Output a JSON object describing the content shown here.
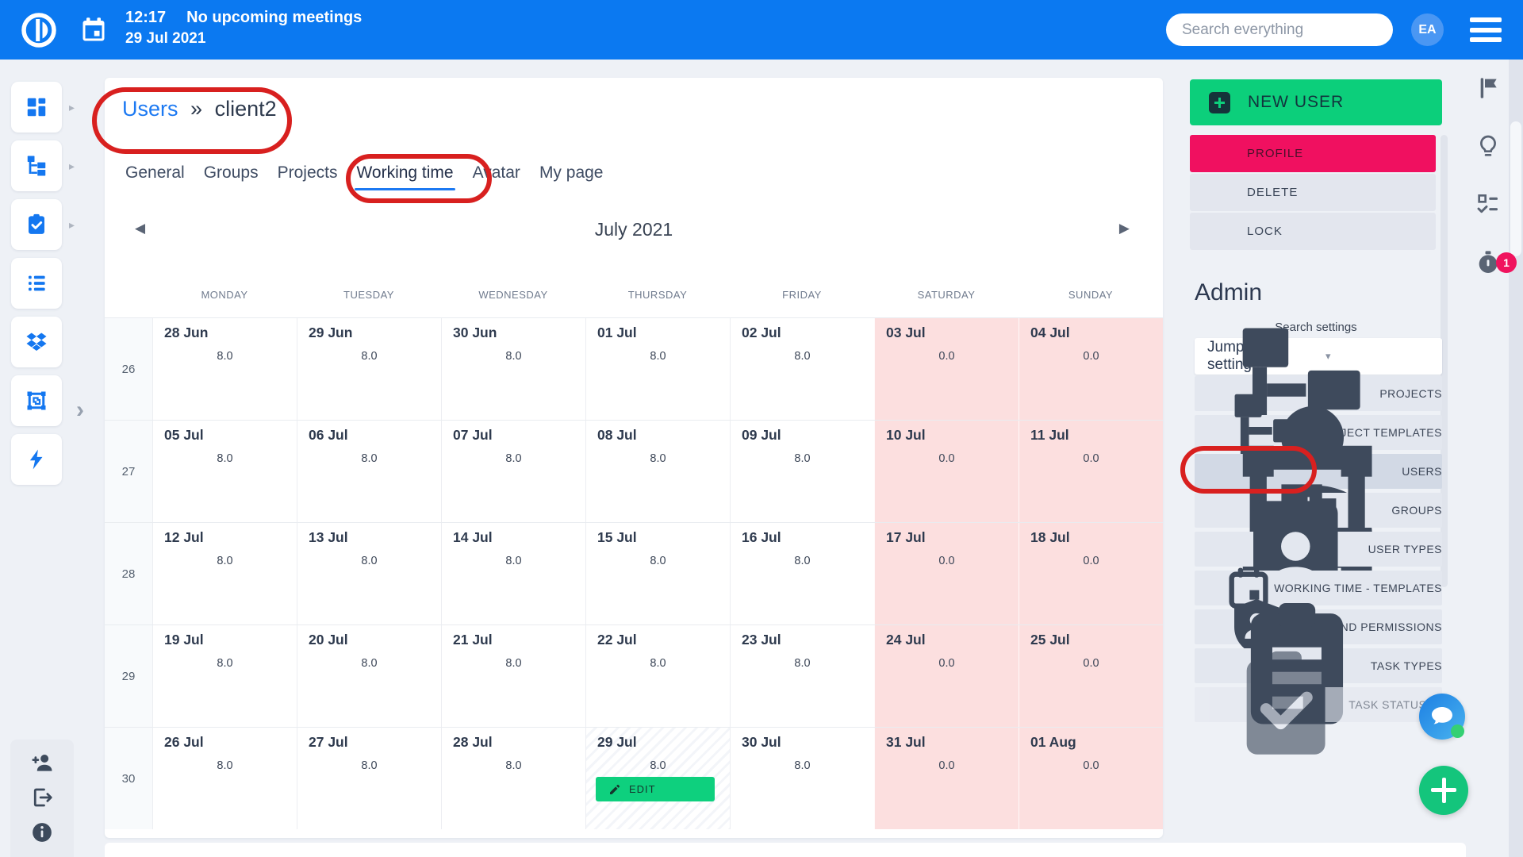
{
  "colors": {
    "topbar_blue": "#0b79f1",
    "accent_blue": "#1c79f2",
    "green": "#0ccf7b",
    "pink": "#f01060",
    "weekend_pink": "#fcdfdf",
    "annotation_red": "#d8201f"
  },
  "topbar": {
    "time": "12:17",
    "meeting_status": "No upcoming meetings",
    "date": "29 Jul 2021",
    "search_placeholder": "Search everything",
    "avatar_initials": "EA"
  },
  "left_rail": {
    "tiles": [
      {
        "icon": "dashboard-icon",
        "has_submenu": true
      },
      {
        "icon": "project-tree-icon",
        "has_submenu": true
      },
      {
        "icon": "tasks-icon",
        "has_submenu": true
      },
      {
        "icon": "list-icon",
        "has_submenu": false
      },
      {
        "icon": "dropbox-icon",
        "has_submenu": false
      },
      {
        "icon": "groups-icon",
        "has_submenu": false
      },
      {
        "icon": "quick-actions-icon",
        "has_submenu": false
      }
    ],
    "bottom_icons": [
      "add-person-icon",
      "logout-icon",
      "info-icon"
    ]
  },
  "breadcrumb": {
    "link": "Users",
    "separator": "»",
    "current": "client2"
  },
  "tabs": {
    "items": [
      "General",
      "Groups",
      "Projects",
      "Working time",
      "Avatar",
      "My page"
    ],
    "active_index": 3
  },
  "calendar": {
    "title": "July 2021",
    "day_headers": [
      "MONDAY",
      "TUESDAY",
      "WEDNESDAY",
      "THURSDAY",
      "FRIDAY",
      "SATURDAY",
      "SUNDAY"
    ],
    "edit_label": "EDIT",
    "weeks": [
      {
        "number": "26",
        "days": [
          {
            "date": "28 Jun",
            "value": "8.0",
            "weekend": false
          },
          {
            "date": "29 Jun",
            "value": "8.0",
            "weekend": false
          },
          {
            "date": "30 Jun",
            "value": "8.0",
            "weekend": false
          },
          {
            "date": "01 Jul",
            "value": "8.0",
            "weekend": false
          },
          {
            "date": "02 Jul",
            "value": "8.0",
            "weekend": false
          },
          {
            "date": "03 Jul",
            "value": "0.0",
            "weekend": true
          },
          {
            "date": "04 Jul",
            "value": "0.0",
            "weekend": true
          }
        ]
      },
      {
        "number": "27",
        "days": [
          {
            "date": "05 Jul",
            "value": "8.0",
            "weekend": false
          },
          {
            "date": "06 Jul",
            "value": "8.0",
            "weekend": false
          },
          {
            "date": "07 Jul",
            "value": "8.0",
            "weekend": false
          },
          {
            "date": "08 Jul",
            "value": "8.0",
            "weekend": false
          },
          {
            "date": "09 Jul",
            "value": "8.0",
            "weekend": false
          },
          {
            "date": "10 Jul",
            "value": "0.0",
            "weekend": true
          },
          {
            "date": "11 Jul",
            "value": "0.0",
            "weekend": true
          }
        ]
      },
      {
        "number": "28",
        "days": [
          {
            "date": "12 Jul",
            "value": "8.0",
            "weekend": false
          },
          {
            "date": "13 Jul",
            "value": "8.0",
            "weekend": false
          },
          {
            "date": "14 Jul",
            "value": "8.0",
            "weekend": false
          },
          {
            "date": "15 Jul",
            "value": "8.0",
            "weekend": false
          },
          {
            "date": "16 Jul",
            "value": "8.0",
            "weekend": false
          },
          {
            "date": "17 Jul",
            "value": "0.0",
            "weekend": true
          },
          {
            "date": "18 Jul",
            "value": "0.0",
            "weekend": true
          }
        ]
      },
      {
        "number": "29",
        "days": [
          {
            "date": "19 Jul",
            "value": "8.0",
            "weekend": false
          },
          {
            "date": "20 Jul",
            "value": "8.0",
            "weekend": false
          },
          {
            "date": "21 Jul",
            "value": "8.0",
            "weekend": false
          },
          {
            "date": "22 Jul",
            "value": "8.0",
            "weekend": false
          },
          {
            "date": "23 Jul",
            "value": "8.0",
            "weekend": false
          },
          {
            "date": "24 Jul",
            "value": "0.0",
            "weekend": true
          },
          {
            "date": "25 Jul",
            "value": "0.0",
            "weekend": true
          }
        ]
      },
      {
        "number": "30",
        "days": [
          {
            "date": "26 Jul",
            "value": "8.0",
            "weekend": false
          },
          {
            "date": "27 Jul",
            "value": "8.0",
            "weekend": false
          },
          {
            "date": "28 Jul",
            "value": "8.0",
            "weekend": false
          },
          {
            "date": "29 Jul",
            "value": "8.0",
            "weekend": false,
            "today": true,
            "edit": true
          },
          {
            "date": "30 Jul",
            "value": "8.0",
            "weekend": false
          },
          {
            "date": "31 Jul",
            "value": "0.0",
            "weekend": true
          },
          {
            "date": "01 Aug",
            "value": "0.0",
            "weekend": true
          }
        ]
      }
    ]
  },
  "right_panel": {
    "new_user_label": "NEW USER",
    "actions": [
      {
        "label": "PROFILE",
        "icon": "person-icon",
        "style": "profile"
      },
      {
        "label": "DELETE",
        "icon": "trash-icon",
        "style": "gray delete"
      },
      {
        "label": "LOCK",
        "icon": "lock-icon",
        "style": "gray lock"
      }
    ],
    "admin_title": "Admin",
    "search_settings_label": "Search settings",
    "jump_value": "Jump to a setting...",
    "settings": [
      {
        "label": "PROJECTS",
        "icon": "project-tree-icon"
      },
      {
        "label": "PROJECT TEMPLATES",
        "icon": "project-tree-icon"
      },
      {
        "label": "USERS",
        "icon": "person-icon",
        "selected": true
      },
      {
        "label": "GROUPS",
        "icon": "groups-icon"
      },
      {
        "label": "USER TYPES",
        "icon": "badge-icon"
      },
      {
        "label": "WORKING TIME - TEMPLATES",
        "icon": "calendar-icon"
      },
      {
        "label": "ROLES AND PERMISSIONS",
        "icon": "shield-person-icon"
      },
      {
        "label": "TASK TYPES",
        "icon": "clipboard-lines-icon"
      },
      {
        "label": "TASK STATUSES",
        "icon": "clipboard-check-icon",
        "faded": true
      }
    ]
  },
  "right_rail": {
    "icons": [
      "flag-icon",
      "bulb-icon",
      "checklist-icon",
      "stopwatch-icon"
    ],
    "stopwatch_badge": "1"
  }
}
